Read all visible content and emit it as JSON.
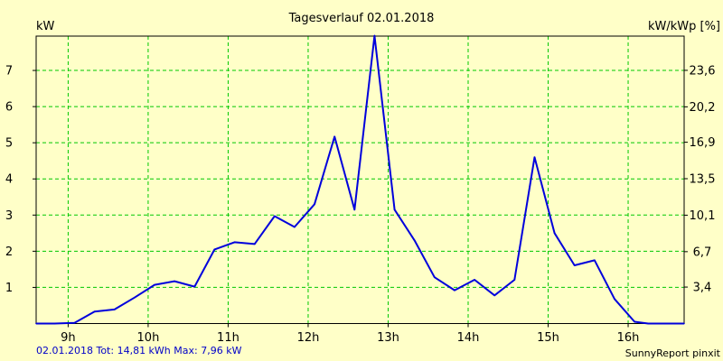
{
  "chart_data": {
    "type": "line",
    "title": "Tagesverlauf 02.01.2018",
    "ylabel": "kW",
    "ylabel_right": "kW/kWp [%]",
    "xlim": [
      8.6,
      16.7
    ],
    "ylim": [
      0,
      7.95
    ],
    "x_ticks": [
      9,
      10,
      11,
      12,
      13,
      14,
      15,
      16
    ],
    "x_tick_labels": [
      "9h",
      "10h",
      "11h",
      "12h",
      "13h",
      "14h",
      "15h",
      "16h"
    ],
    "y_ticks": [
      1,
      2,
      3,
      4,
      5,
      6,
      7
    ],
    "y_tick_labels": [
      "1",
      "2",
      "3",
      "4",
      "5",
      "6",
      "7"
    ],
    "y_right_ticks": [
      3.4,
      6.7,
      10.1,
      13.5,
      16.9,
      20.2,
      23.6
    ],
    "y_right_tick_labels": [
      "3,4",
      "6,7",
      "10,1",
      "13,5",
      "16,9",
      "20,2",
      "23,6"
    ],
    "y_right_per_left": 3.37,
    "grid": true,
    "series": [
      {
        "name": "kW",
        "color": "#0000dc",
        "x": [
          8.6,
          8.83,
          9.08,
          9.33,
          9.58,
          9.83,
          10.08,
          10.33,
          10.58,
          10.83,
          11.08,
          11.33,
          11.58,
          11.83,
          12.08,
          12.33,
          12.58,
          12.83,
          13.08,
          13.33,
          13.58,
          13.83,
          14.08,
          14.33,
          14.58,
          14.83,
          15.08,
          15.33,
          15.58,
          15.83,
          16.08,
          16.25,
          16.7
        ],
        "y": [
          0,
          0,
          0.02,
          0.33,
          0.39,
          0.72,
          1.07,
          1.17,
          1.02,
          2.05,
          2.25,
          2.2,
          2.97,
          2.67,
          3.3,
          5.17,
          3.15,
          7.96,
          3.15,
          2.3,
          1.28,
          0.92,
          1.21,
          0.78,
          1.21,
          4.6,
          2.5,
          1.61,
          1.75,
          0.68,
          0.05,
          0,
          0
        ]
      }
    ]
  },
  "footer": {
    "left": "02.01.2018 Tot: 14,81 kWh Max: 7,96 kW",
    "right": "SunnyReport pinxit"
  },
  "colors": {
    "background": "#ffffc8",
    "grid": "#00c800",
    "footer_left": "#0000c8"
  }
}
